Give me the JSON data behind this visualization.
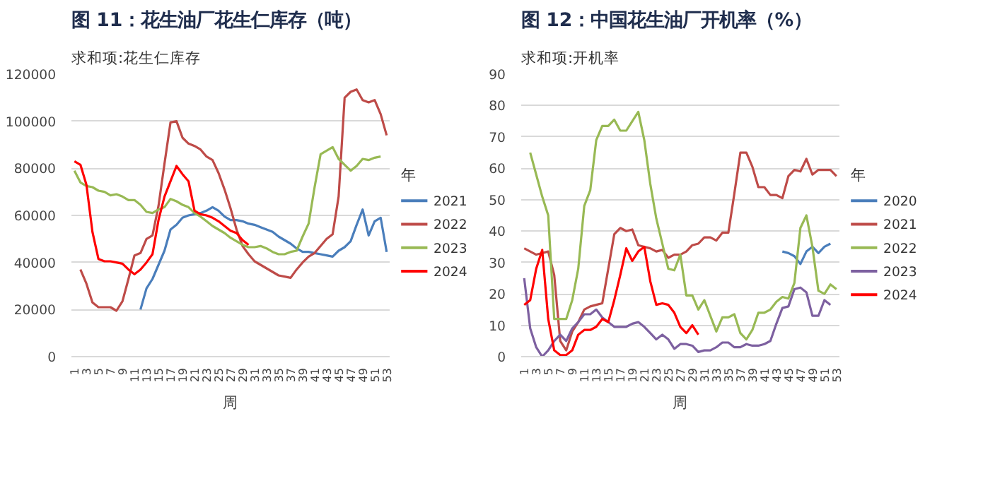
{
  "chart_data": [
    {
      "type": "line",
      "title": "图 11：花生油厂花生仁库存（吨）",
      "ylabel": "求和项:花生仁库存",
      "xlabel": "周",
      "legend_title": "年",
      "legend": "right",
      "grid": "y",
      "categories": [
        "1",
        null,
        "3",
        null,
        "5",
        null,
        "7",
        null,
        "9",
        null,
        "11",
        null,
        "13",
        null,
        "15",
        null,
        "17",
        null,
        "19",
        null,
        "21",
        null,
        "23",
        null,
        "25",
        null,
        "27",
        null,
        "29",
        null,
        "31",
        null,
        "33",
        null,
        "35",
        null,
        "37",
        null,
        "39",
        null,
        "41",
        null,
        "43",
        null,
        "45",
        null,
        "47",
        null,
        "49",
        null,
        "51",
        null,
        "53"
      ],
      "ylim": [
        0,
        120000
      ],
      "yticks": [
        0,
        20000,
        40000,
        60000,
        80000,
        100000,
        120000
      ],
      "series": [
        {
          "name": "2021",
          "color": "#4a7ebb",
          "values": [
            null,
            null,
            null,
            null,
            null,
            null,
            null,
            null,
            null,
            null,
            null,
            20000,
            29000,
            33000,
            39000,
            45000,
            54000,
            56000,
            59000,
            60000,
            60500,
            61000,
            62000,
            63500,
            62000,
            59500,
            58000,
            58000,
            57500,
            56500,
            56000,
            55000,
            54000,
            53000,
            51000,
            49500,
            48000,
            46000,
            44500,
            44500,
            44000,
            43500,
            43000,
            42500,
            45000,
            46500,
            49000,
            56000,
            62500,
            51500,
            57500,
            59000,
            44500
          ]
        },
        {
          "name": "2022",
          "color": "#be4b48",
          "values": [
            null,
            37000,
            31000,
            23000,
            21000,
            21000,
            21000,
            19500,
            23500,
            33000,
            43000,
            44000,
            50000,
            51500,
            64000,
            82000,
            99500,
            100000,
            93000,
            90500,
            89500,
            88000,
            85000,
            83500,
            78000,
            71000,
            63000,
            54000,
            47000,
            43500,
            40500,
            39000,
            37500,
            36000,
            34500,
            34000,
            33500,
            37000,
            40000,
            42500,
            44000,
            47000,
            50000,
            52000,
            68000,
            110000,
            112500,
            113500,
            109000,
            108000,
            109000,
            103000,
            94000
          ]
        },
        {
          "name": "2023",
          "color": "#98b954",
          "values": [
            79000,
            74000,
            72500,
            72000,
            70500,
            70000,
            68500,
            69000,
            68000,
            66500,
            66500,
            64500,
            61500,
            61000,
            62500,
            63500,
            67000,
            66000,
            64500,
            63500,
            61000,
            59500,
            57500,
            55500,
            54000,
            52500,
            50500,
            49000,
            47500,
            46500,
            46500,
            47000,
            46000,
            44500,
            43500,
            43500,
            44500,
            45000,
            51000,
            56500,
            72000,
            86000,
            87500,
            89000,
            84000,
            81500,
            79000,
            81000,
            84000,
            83500,
            84500,
            85000,
            null
          ]
        },
        {
          "name": "2024",
          "color": "#ff0000",
          "values": [
            83000,
            81500,
            73000,
            53000,
            41500,
            40500,
            40500,
            40000,
            39500,
            37000,
            35000,
            37000,
            40000,
            43500,
            58000,
            68000,
            74500,
            81000,
            77500,
            74500,
            62000,
            60500,
            60000,
            59000,
            57500,
            55500,
            53500,
            52500,
            49500,
            47500,
            null,
            null,
            null,
            null,
            null,
            null,
            null,
            null,
            null,
            null,
            null,
            null,
            null,
            null,
            null,
            null,
            null,
            null,
            null,
            null,
            null,
            null,
            null
          ]
        }
      ]
    },
    {
      "type": "line",
      "title": "图 12：中国花生油厂开机率（%）",
      "ylabel": "求和项:开机率",
      "xlabel": "周",
      "legend_title": "年",
      "legend": "right",
      "grid": "y",
      "categories": [
        "1",
        null,
        "3",
        null,
        "5",
        null,
        "7",
        null,
        "9",
        null,
        "11",
        null,
        "13",
        null,
        "15",
        null,
        "17",
        null,
        "19",
        null,
        "21",
        null,
        "23",
        null,
        "25",
        null,
        "27",
        null,
        "29",
        null,
        "31",
        null,
        "33",
        null,
        "35",
        null,
        "37",
        null,
        "39",
        null,
        "41",
        null,
        "43",
        null,
        "45",
        null,
        "47",
        null,
        "49",
        null,
        "51",
        null,
        "53"
      ],
      "ylim": [
        0,
        90
      ],
      "yticks": [
        0,
        10,
        20,
        30,
        40,
        50,
        60,
        70,
        80,
        90
      ],
      "series": [
        {
          "name": "2020",
          "color": "#4a7ebb",
          "values": [
            null,
            null,
            null,
            null,
            null,
            null,
            null,
            null,
            null,
            null,
            null,
            null,
            null,
            null,
            null,
            null,
            null,
            null,
            null,
            null,
            null,
            null,
            null,
            null,
            null,
            null,
            null,
            null,
            null,
            null,
            null,
            null,
            null,
            null,
            null,
            null,
            null,
            null,
            null,
            null,
            null,
            null,
            null,
            33.5,
            33,
            32,
            29.5,
            33.5,
            35,
            33,
            35,
            36,
            null
          ]
        },
        {
          "name": "2021",
          "color": "#be4b48",
          "values": [
            34.5,
            33.5,
            32.5,
            33,
            33.5,
            26,
            5,
            2,
            8,
            11,
            15,
            16,
            16.5,
            17,
            28,
            39,
            41,
            40,
            40.5,
            35.5,
            35,
            34.5,
            33.5,
            34,
            31.5,
            32.5,
            32.5,
            33.5,
            35.5,
            36,
            38,
            38,
            37,
            39.5,
            39.5,
            52,
            65,
            65,
            60.5,
            54,
            54,
            51.5,
            51.5,
            50.5,
            57.5,
            59.5,
            59,
            63,
            58,
            59.5,
            59.5,
            59.5,
            57.5
          ]
        },
        {
          "name": "2022",
          "color": "#98b954",
          "values": [
            null,
            65,
            58,
            51,
            45,
            12,
            12,
            12,
            18,
            28,
            48,
            53,
            69,
            73.5,
            73.5,
            75.5,
            72,
            72,
            75,
            78,
            69,
            55,
            44,
            36,
            28,
            27.5,
            32.5,
            19.5,
            19.5,
            15,
            18,
            13,
            8,
            12.5,
            12.5,
            13.5,
            7.5,
            5.5,
            8.5,
            14,
            14,
            15,
            17.5,
            19,
            18.5,
            23.5,
            41,
            45,
            35,
            21,
            20,
            23,
            21.5
          ]
        },
        {
          "name": "2023",
          "color": "#7d60a0",
          "values": [
            25,
            9,
            3,
            0,
            2,
            5,
            7,
            5,
            9,
            11,
            13.5,
            13.5,
            15,
            12.5,
            11,
            9.5,
            9.5,
            9.5,
            10.5,
            11,
            9.5,
            7.5,
            5.5,
            7,
            5.5,
            2.5,
            4,
            4,
            3.5,
            1.5,
            2,
            2,
            3,
            4.5,
            4.5,
            3,
            3,
            4,
            3.5,
            3.5,
            4,
            5,
            10.5,
            15.5,
            16,
            21.5,
            22,
            20.5,
            13,
            13,
            18,
            16.5,
            null
          ]
        },
        {
          "name": "2024",
          "color": "#ff0000",
          "values": [
            16.5,
            18,
            28,
            34,
            12,
            2,
            0.5,
            0.5,
            2,
            7,
            8.5,
            8.5,
            9.5,
            12,
            11,
            18,
            26,
            34.5,
            30.5,
            33.5,
            35,
            24,
            16.5,
            17,
            16.5,
            14,
            9.5,
            7.5,
            10,
            7,
            null,
            null,
            null,
            null,
            null,
            null,
            null,
            null,
            null,
            null,
            null,
            null,
            null,
            null,
            null,
            null,
            null,
            null,
            null,
            null,
            null,
            null,
            null
          ]
        }
      ]
    }
  ]
}
